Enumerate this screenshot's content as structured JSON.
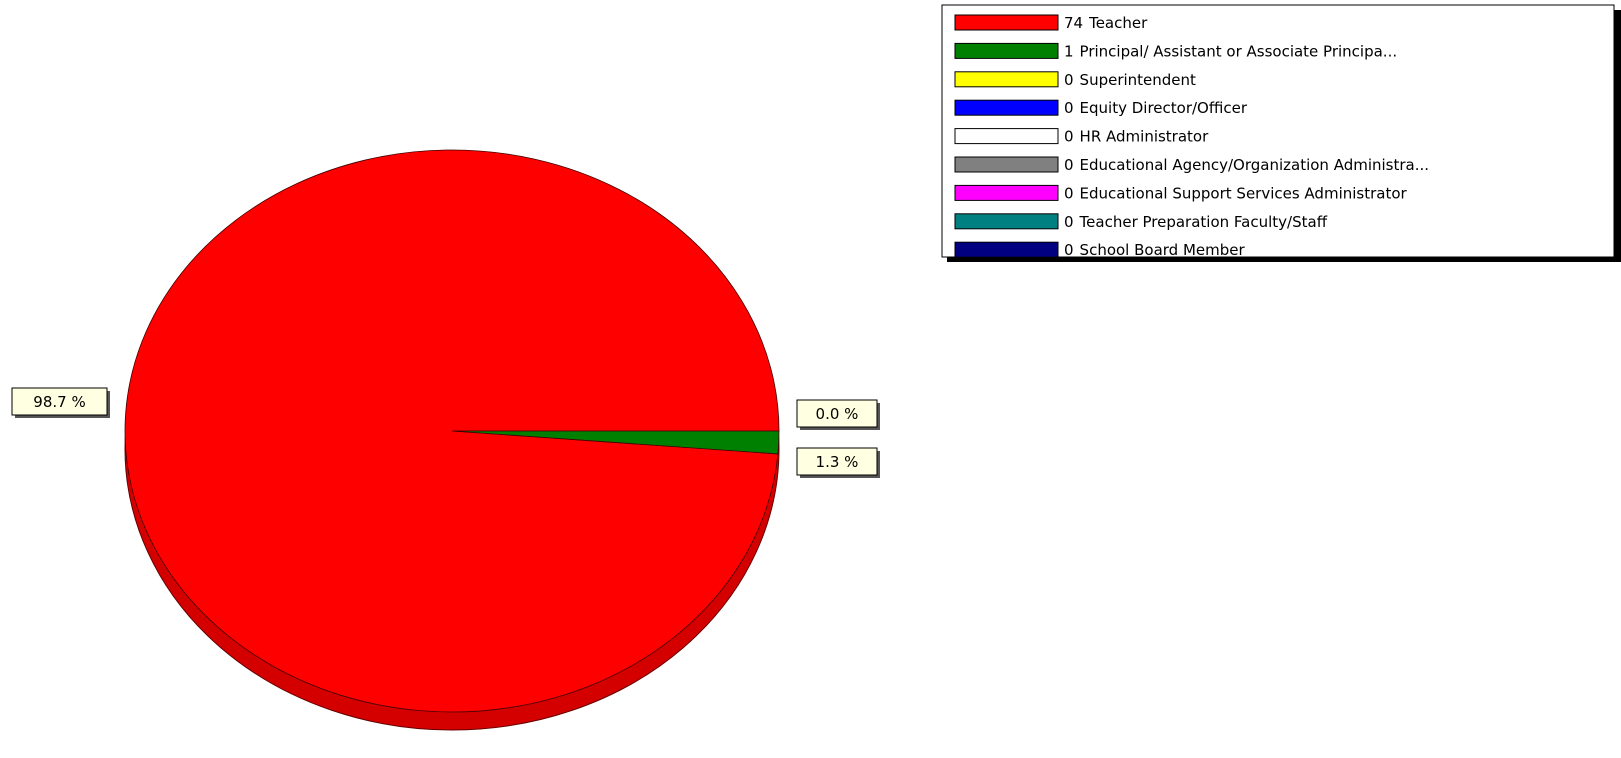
{
  "chart_data": {
    "type": "pie",
    "categories": [
      "Teacher",
      "Principal/ Assistant or Associate Principa...",
      "Superintendent",
      "Equity Director/Officer",
      "HR Administrator",
      "Educational Agency/Organization Administra...",
      "Educational Support Services Administrator",
      "Teacher Preparation Faculty/Staff",
      "School Board Member"
    ],
    "counts": [
      74,
      1,
      0,
      0,
      0,
      0,
      0,
      0,
      0
    ],
    "values": [
      98.7,
      1.3,
      0,
      0,
      0,
      0,
      0,
      0,
      0
    ],
    "value_labels": [
      "98.7 %",
      "1.3 %",
      "0.0 %",
      null,
      null,
      null,
      null,
      null,
      null
    ],
    "colors": [
      "#ff0000",
      "#008000",
      "#ffff00",
      "#0000ff",
      "#ffffff",
      "#808080",
      "#ff00ff",
      "#008080",
      "#000080"
    ],
    "legend": "top-right"
  }
}
